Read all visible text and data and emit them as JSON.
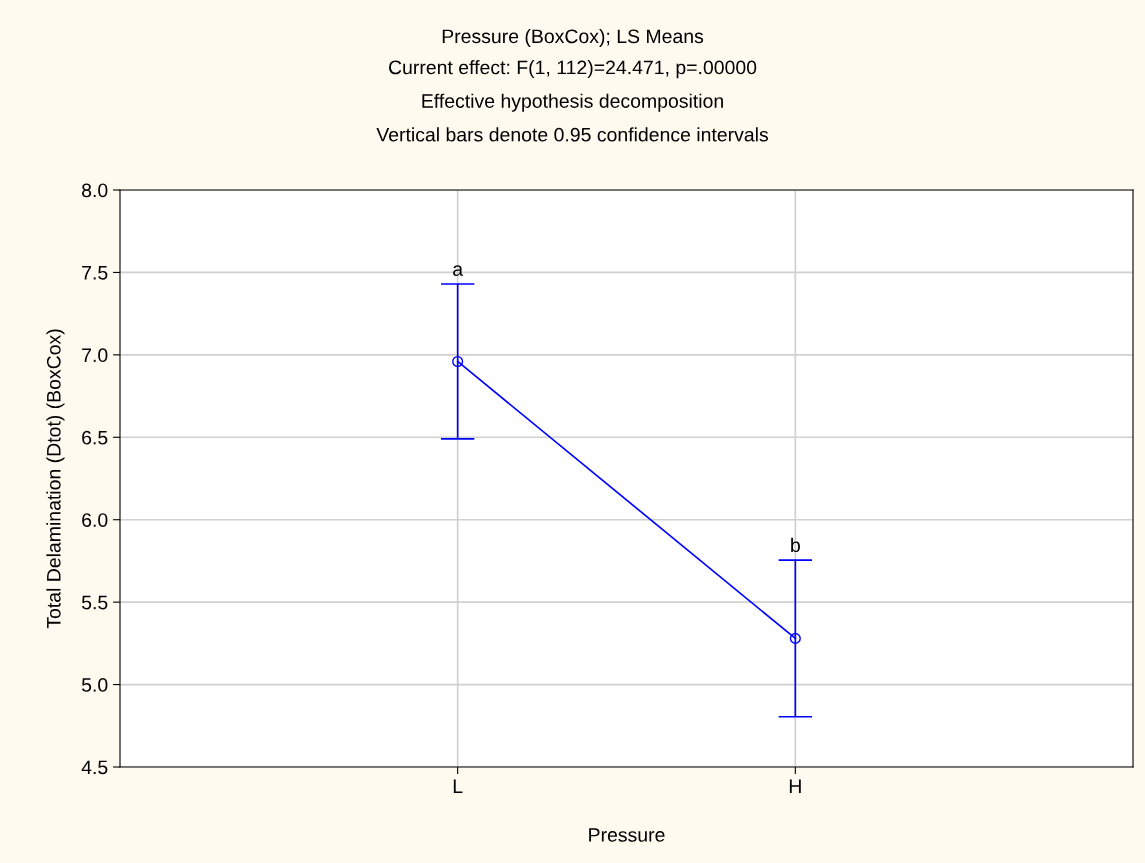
{
  "chart_data": {
    "type": "line",
    "title": "Pressure (BoxCox); LS Means",
    "subtitle": "Current effect: F(1, 112)=24.471, p=.00000\nEffective hypothesis decomposition\nVertical bars denote 0.95 confidence intervals",
    "xlabel": "Pressure",
    "ylabel": "Total Delamination (Dtot) (BoxCox)",
    "categories": [
      "L",
      "H"
    ],
    "series": [
      {
        "color": "#0000ff",
        "values": [
          6.96,
          5.28
        ],
        "errors": [
          0.47,
          0.475
        ]
      }
    ],
    "ylim": [
      4.5,
      8.0
    ],
    "yticks": [
      {
        "value": 4.5,
        "label": "4.5"
      },
      {
        "value": 5.0,
        "label": "5.0"
      },
      {
        "value": 5.5,
        "label": "5.5"
      },
      {
        "value": 6.0,
        "label": "6.0"
      },
      {
        "value": 6.5,
        "label": "6.5"
      },
      {
        "value": 7.0,
        "label": "7.0"
      },
      {
        "value": 7.5,
        "label": "7.5"
      },
      {
        "value": 8.0,
        "label": "8.0"
      }
    ],
    "annotations": [
      "a",
      "b"
    ],
    "grid": true,
    "marker": "circle",
    "line_style": "solid",
    "legend": false
  }
}
